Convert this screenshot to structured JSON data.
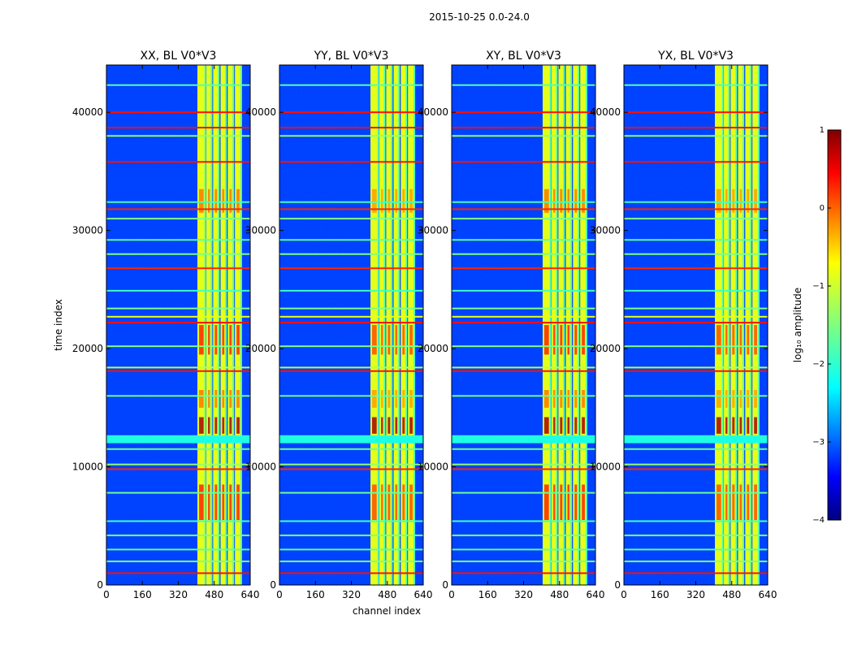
{
  "suptitle": "2015-10-25 0.0-24.0",
  "chart_data": {
    "type": "heatmap",
    "title": "2015-10-25 0.0-24.0",
    "xlabel": "channel index",
    "ylabel": "time index",
    "xlim": [
      0,
      640
    ],
    "ylim": [
      0,
      44000
    ],
    "xticks": [
      0,
      160,
      320,
      480,
      640
    ],
    "xtick_labels": [
      "0",
      "160",
      "320",
      "480",
      "640"
    ],
    "yticks": [
      0,
      10000,
      20000,
      30000,
      40000
    ],
    "ytick_labels": [
      "0",
      "10000",
      "20000",
      "30000",
      "40000"
    ],
    "colormap": "jet",
    "colorbar": {
      "label": "log₁₀ amplitude",
      "range": [
        -4,
        1
      ],
      "ticks": [
        1,
        0,
        -1,
        -2,
        -3,
        -4
      ],
      "tick_labels": [
        "1",
        "0",
        "−1",
        "−2",
        "−3",
        "−4"
      ]
    },
    "panels": [
      {
        "title": "XX, BL V0*V3",
        "id": "xx"
      },
      {
        "title": "YY, BL V0*V3",
        "id": "yy"
      },
      {
        "title": "XY, BL V0*V3",
        "id": "xy"
      },
      {
        "title": "YX, BL V0*V3",
        "id": "yx"
      }
    ],
    "background_level": -3.1,
    "bright_band_channels": [
      [
        405,
        440
      ],
      [
        445,
        468
      ],
      [
        475,
        500
      ],
      [
        508,
        532
      ],
      [
        540,
        565
      ],
      [
        572,
        600
      ]
    ],
    "bright_band_level": -1.0,
    "hot_time_ranges": [
      [
        12800,
        14200
      ],
      [
        31500,
        33500
      ],
      [
        5500,
        8500
      ],
      [
        15000,
        16500
      ],
      [
        19500,
        22000
      ]
    ],
    "hot_level": 0.2,
    "horizontal_lines": [
      {
        "t": 1000,
        "level": 0.3
      },
      {
        "t": 2000,
        "level": -1.5
      },
      {
        "t": 3000,
        "level": -1.7
      },
      {
        "t": 4200,
        "level": -1.5
      },
      {
        "t": 5400,
        "level": -1.8
      },
      {
        "t": 7800,
        "level": -1.6
      },
      {
        "t": 9800,
        "level": 0.2
      },
      {
        "t": 10200,
        "level": -1.4
      },
      {
        "t": 11500,
        "level": -1.6
      },
      {
        "t": 12300,
        "level": -1.9
      },
      {
        "t": 12600,
        "level": -1.7
      },
      {
        "t": 16000,
        "level": -1.6
      },
      {
        "t": 18100,
        "level": 0.3
      },
      {
        "t": 18400,
        "level": -1.2
      },
      {
        "t": 20200,
        "level": -1.5
      },
      {
        "t": 22200,
        "level": 0.3
      },
      {
        "t": 22700,
        "level": -1.0
      },
      {
        "t": 23400,
        "level": -1.5
      },
      {
        "t": 24900,
        "level": -1.8
      },
      {
        "t": 26800,
        "level": 0.2
      },
      {
        "t": 28000,
        "level": -1.5
      },
      {
        "t": 29200,
        "level": -1.7
      },
      {
        "t": 31000,
        "level": -1.5
      },
      {
        "t": 31800,
        "level": 0.2
      },
      {
        "t": 32400,
        "level": -1.8
      },
      {
        "t": 35800,
        "level": 0.3
      },
      {
        "t": 38000,
        "level": -1.4
      },
      {
        "t": 38700,
        "level": 0.3
      },
      {
        "t": 40000,
        "level": 0.3
      },
      {
        "t": 42300,
        "level": -1.7
      }
    ]
  }
}
